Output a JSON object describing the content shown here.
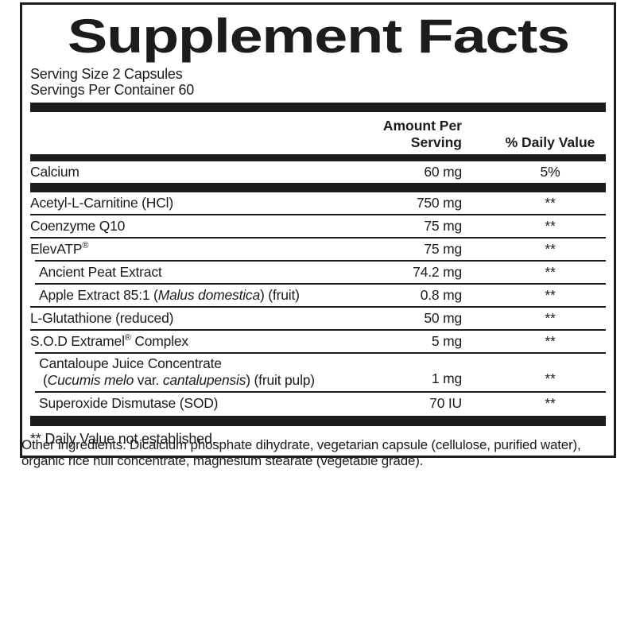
{
  "colors": {
    "ink": "#1d1c1a",
    "background": "#ffffff"
  },
  "label": {
    "title": "Supplement Facts",
    "serving": {
      "size": "Serving Size 2 Capsules",
      "per_container": "Servings Per Container 60"
    },
    "header": {
      "amount": "Amount Per Serving",
      "dv": "% Daily Value"
    },
    "calcium_row": {
      "name": "Calcium",
      "amount": "60 mg",
      "dv": "5%"
    },
    "rows": [
      {
        "sep": "none",
        "indent": false,
        "lines": [
          [
            {
              "t": "Acetyl-L-Carnitine (HCl)"
            }
          ]
        ],
        "amount": "750 mg",
        "dv": "**"
      },
      {
        "sep": "full",
        "indent": false,
        "lines": [
          [
            {
              "t": "Coenzyme Q10"
            }
          ]
        ],
        "amount": "75 mg",
        "dv": "**"
      },
      {
        "sep": "full",
        "indent": false,
        "lines": [
          [
            {
              "t": "ElevATP"
            },
            {
              "t": "®",
              "sup": true
            }
          ]
        ],
        "amount": "75 mg",
        "dv": "**"
      },
      {
        "sep": "indent",
        "indent": true,
        "lines": [
          [
            {
              "t": "Ancient Peat Extract"
            }
          ]
        ],
        "amount": "74.2 mg",
        "dv": "**"
      },
      {
        "sep": "indent",
        "indent": true,
        "lines": [
          [
            {
              "t": "Apple Extract 85:1 ("
            },
            {
              "t": "Malus domestica",
              "i": true
            },
            {
              "t": ") (fruit)"
            }
          ]
        ],
        "amount": "0.8 mg",
        "dv": "**"
      },
      {
        "sep": "full",
        "indent": false,
        "lines": [
          [
            {
              "t": "L-Glutathione (reduced)"
            }
          ]
        ],
        "amount": "50 mg",
        "dv": "**"
      },
      {
        "sep": "full",
        "indent": false,
        "lines": [
          [
            {
              "t": "S.O.D Extramel"
            },
            {
              "t": "®",
              "sup": true
            },
            {
              "t": " Complex"
            }
          ]
        ],
        "amount": "5 mg",
        "dv": "**"
      },
      {
        "sep": "indent",
        "indent": true,
        "lines": [
          [
            {
              "t": "Cantaloupe Juice Concentrate"
            }
          ],
          [
            {
              "t": "("
            },
            {
              "t": "Cucumis melo",
              "i": true
            },
            {
              "t": " var. "
            },
            {
              "t": "cantalupensis",
              "i": true
            },
            {
              "t": ") (fruit pulp)"
            }
          ]
        ],
        "amount": "1 mg",
        "dv": "**"
      },
      {
        "sep": "indent",
        "indent": true,
        "lines": [
          [
            {
              "t": "Superoxide Dismutase (SOD)"
            }
          ]
        ],
        "amount": "70 IU",
        "dv": "**"
      }
    ],
    "footnote": "** Daily Value not established."
  },
  "other_ingredients": {
    "lines": [
      "Other ingredients: Dicalcium phosphate dihydrate, vegetarian capsule (cellulose, purified water),",
      "organic rice hull concentrate, magnesium stearate (vegetable grade)."
    ]
  }
}
